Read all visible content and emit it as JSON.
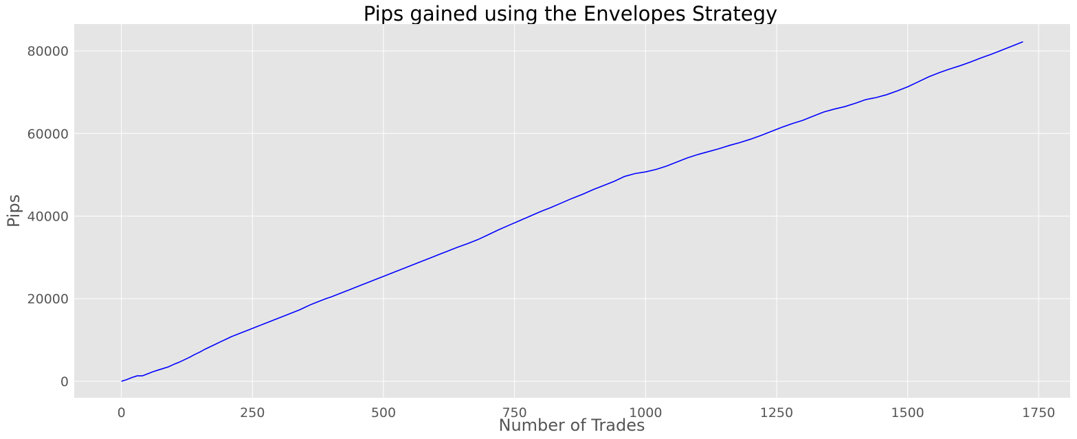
{
  "chart_data": {
    "type": "line",
    "title": "Pips gained using the Envelopes Strategy",
    "xlabel": "Number of Trades",
    "ylabel": "Pips",
    "xlim": [
      -90,
      1810
    ],
    "ylim": [
      -4000,
      86500
    ],
    "xticks": [
      0,
      250,
      500,
      750,
      1000,
      1250,
      1500,
      1750
    ],
    "yticks": [
      0,
      20000,
      40000,
      60000,
      80000
    ],
    "grid": true,
    "background": "#e5e5e5",
    "grid_color": "#ffffff",
    "line_color": "#0000ff",
    "series": [
      {
        "x": [
          0,
          10,
          20,
          30,
          40,
          50,
          60,
          70,
          80,
          90,
          100,
          110,
          120,
          130,
          140,
          150,
          160,
          170,
          180,
          190,
          200,
          210,
          220,
          230,
          240,
          250,
          260,
          270,
          280,
          290,
          300,
          310,
          320,
          330,
          340,
          350,
          360,
          370,
          380,
          390,
          400,
          410,
          420,
          430,
          440,
          450,
          460,
          470,
          480,
          490,
          500,
          520,
          540,
          560,
          580,
          600,
          620,
          640,
          660,
          680,
          700,
          720,
          740,
          760,
          780,
          800,
          820,
          840,
          860,
          880,
          900,
          920,
          940,
          960,
          980,
          1000,
          1020,
          1040,
          1060,
          1080,
          1100,
          1120,
          1140,
          1160,
          1180,
          1200,
          1220,
          1240,
          1260,
          1280,
          1300,
          1320,
          1340,
          1360,
          1380,
          1400,
          1420,
          1440,
          1460,
          1480,
          1500,
          1520,
          1540,
          1560,
          1580,
          1600,
          1620,
          1640,
          1660,
          1680,
          1700,
          1720
        ],
        "y": [
          0,
          400,
          900,
          1300,
          1300,
          1800,
          2300,
          2700,
          3100,
          3500,
          4100,
          4600,
          5200,
          5800,
          6500,
          7100,
          7800,
          8400,
          9000,
          9600,
          10200,
          10800,
          11300,
          11800,
          12300,
          12800,
          13300,
          13800,
          14300,
          14800,
          15300,
          15800,
          16300,
          16800,
          17300,
          17900,
          18500,
          19000,
          19500,
          20000,
          20400,
          20900,
          21400,
          21900,
          22400,
          22900,
          23400,
          23900,
          24400,
          24900,
          25400,
          26400,
          27400,
          28400,
          29400,
          30400,
          31400,
          32400,
          33300,
          34300,
          35500,
          36700,
          37800,
          38900,
          40000,
          41100,
          42100,
          43200,
          44300,
          45300,
          46400,
          47400,
          48400,
          49600,
          50300,
          50700,
          51300,
          52100,
          53100,
          54100,
          54900,
          55600,
          56300,
          57100,
          57800,
          58600,
          59500,
          60500,
          61500,
          62400,
          63200,
          64200,
          65200,
          65900,
          66500,
          67300,
          68200,
          68700,
          69400,
          70300,
          71300,
          72500,
          73700,
          74700,
          75600,
          76400,
          77300,
          78300,
          79200,
          80200,
          81200,
          82200
        ]
      }
    ]
  }
}
